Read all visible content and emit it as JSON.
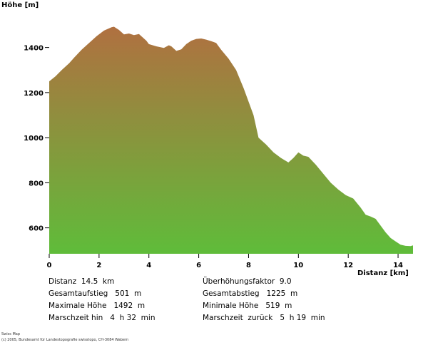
{
  "chart_data": {
    "type": "area",
    "ylabel": "Höhe [m]",
    "xlabel": "Distanz [km]",
    "xlim": [
      0,
      14.6
    ],
    "ylim": [
      485,
      1500
    ],
    "x_ticks": [
      0,
      2,
      4,
      6,
      8,
      10,
      12,
      14
    ],
    "y_ticks": [
      600,
      800,
      1000,
      1200,
      1400
    ],
    "grid": false,
    "fill_gradient": {
      "top": "#b07040",
      "bottom": "#5fbc3a"
    },
    "x": [
      0,
      0.25,
      0.5,
      0.8,
      1.0,
      1.3,
      1.6,
      1.9,
      2.2,
      2.5,
      2.6,
      2.8,
      3.0,
      3.2,
      3.4,
      3.6,
      3.9,
      4.0,
      4.3,
      4.6,
      4.8,
      4.9,
      5.1,
      5.3,
      5.5,
      5.7,
      5.9,
      6.1,
      6.3,
      6.5,
      6.7,
      6.9,
      7.2,
      7.5,
      7.8,
      8.2,
      8.4,
      8.7,
      9.0,
      9.3,
      9.6,
      9.8,
      10.0,
      10.2,
      10.4,
      10.7,
      11.0,
      11.3,
      11.6,
      11.9,
      12.2,
      12.5,
      12.7,
      12.9,
      13.1,
      13.3,
      13.5,
      13.7,
      13.9,
      14.1,
      14.3,
      14.5,
      14.6
    ],
    "y": [
      1250,
      1272,
      1300,
      1330,
      1355,
      1390,
      1420,
      1450,
      1475,
      1490,
      1492,
      1478,
      1458,
      1462,
      1455,
      1460,
      1430,
      1415,
      1405,
      1398,
      1410,
      1405,
      1385,
      1392,
      1415,
      1430,
      1438,
      1440,
      1435,
      1428,
      1420,
      1390,
      1350,
      1300,
      1220,
      1100,
      1000,
      970,
      935,
      910,
      890,
      910,
      935,
      920,
      915,
      880,
      840,
      800,
      770,
      745,
      730,
      690,
      658,
      650,
      640,
      610,
      580,
      555,
      540,
      525,
      520,
      519,
      522
    ]
  },
  "stats": {
    "distanz": "Distanz  14.5  km",
    "gesamtaufstieg": "Gesamtaufstieg   501  m",
    "maximale_hoehe": "Maximale Höhe   1492  m",
    "marschzeit_hin": "Marschzeit hin   4  h 32  min",
    "ueberhoehung": "Überhöhungsfaktor  9.0",
    "gesamtabstieg": "Gesamtabstieg   1225  m",
    "minimale_hoehe": "Minimale Höhe   519  m",
    "marschzeit_zurueck": "Marschzeit  zurück   5  h 19  min"
  },
  "copyright": {
    "line1": "Swiss Map",
    "line2": "(c) 2005, Bundesamt für Landestopografie swisstopo, CH-3084 Wabern"
  }
}
